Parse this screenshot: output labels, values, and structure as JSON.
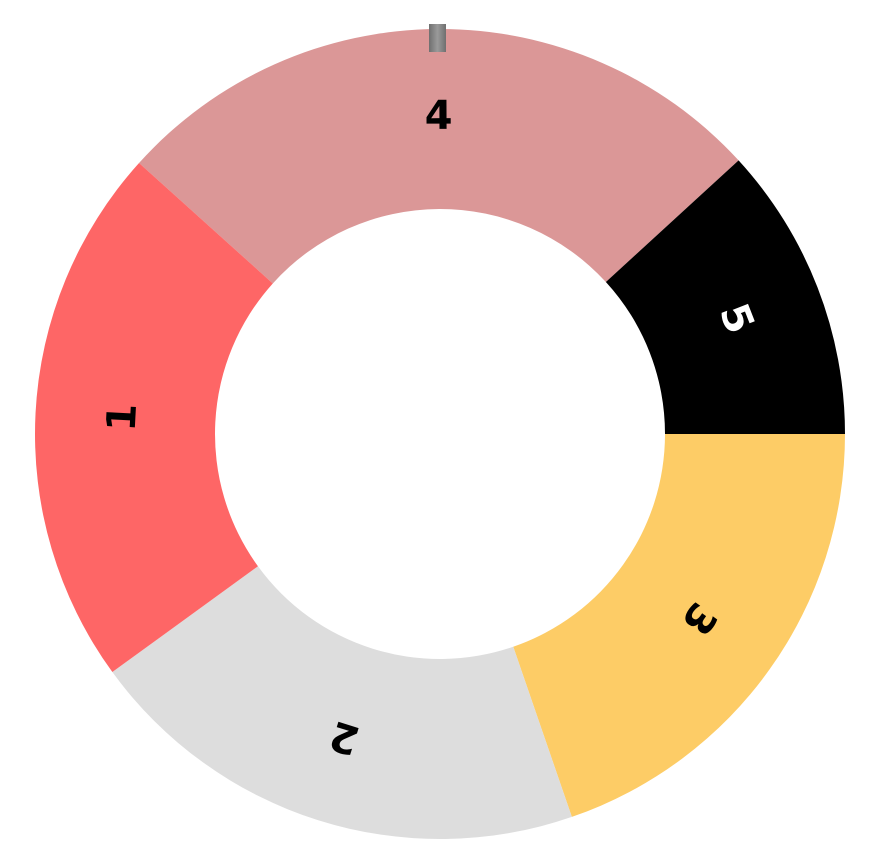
{
  "wheel": {
    "segments": [
      {
        "label": "1",
        "color": "#fe6666",
        "label_color": "#000000"
      },
      {
        "label": "2",
        "color": "#dddddd",
        "label_color": "#000000"
      },
      {
        "label": "3",
        "color": "#fdcc66",
        "label_color": "#000000"
      },
      {
        "label": "4",
        "color": "#db9797",
        "label_color": "#000000"
      },
      {
        "label": "5",
        "color": "#000000",
        "label_color": "#ffffff"
      }
    ],
    "pointer_color": "#808080"
  }
}
